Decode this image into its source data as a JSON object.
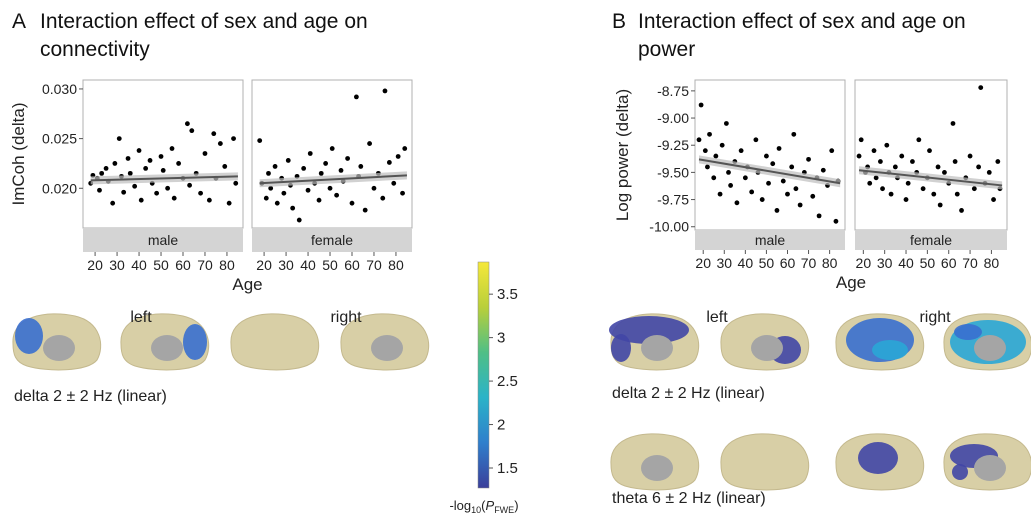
{
  "chart_data": [
    {
      "type": "scatter",
      "panel": "A",
      "title": "Interaction effect of sex and age on connectivity",
      "y_label": "ImCoh (delta)",
      "x_label": "Age",
      "xlim": [
        14.5,
        87.3
      ],
      "xticks": [
        20,
        30,
        40,
        50,
        60,
        70,
        80
      ],
      "ylim": [
        0.016,
        0.0309
      ],
      "yticks": [
        {
          "value": 0.02,
          "label": "0.020"
        },
        {
          "value": 0.025,
          "label": "0.025"
        },
        {
          "value": 0.03,
          "label": "0.030"
        }
      ],
      "point_color": "#000000",
      "trend_color": "#555555",
      "facets": [
        {
          "name": "male",
          "x": [
            18,
            19,
            21,
            22,
            23,
            25,
            26,
            28,
            29,
            31,
            32,
            33,
            35,
            36,
            38,
            40,
            41,
            43,
            45,
            46,
            48,
            50,
            51,
            53,
            55,
            56,
            58,
            60,
            62,
            63,
            64,
            66,
            68,
            70,
            72,
            74,
            75,
            77,
            79,
            81,
            83,
            84
          ],
          "y": [
            0.0205,
            0.0213,
            0.021,
            0.0198,
            0.0215,
            0.022,
            0.0207,
            0.0185,
            0.0225,
            0.025,
            0.0212,
            0.0196,
            0.023,
            0.0215,
            0.0202,
            0.0238,
            0.0188,
            0.022,
            0.0228,
            0.0205,
            0.0195,
            0.0232,
            0.0218,
            0.02,
            0.024,
            0.019,
            0.0225,
            0.021,
            0.0265,
            0.0203,
            0.0258,
            0.0215,
            0.0195,
            0.0235,
            0.0188,
            0.0255,
            0.021,
            0.0245,
            0.0222,
            0.0185,
            0.025,
            0.0205
          ],
          "trend_x": [
            18,
            85
          ],
          "trend_y": [
            0.0208,
            0.0212
          ]
        },
        {
          "name": "female",
          "x": [
            18,
            19,
            21,
            22,
            23,
            25,
            26,
            28,
            29,
            31,
            32,
            33,
            35,
            36,
            38,
            40,
            41,
            43,
            45,
            46,
            48,
            50,
            51,
            53,
            55,
            56,
            58,
            60,
            62,
            63,
            64,
            66,
            68,
            70,
            72,
            74,
            75,
            77,
            79,
            81,
            83,
            84
          ],
          "y": [
            0.0248,
            0.0205,
            0.019,
            0.0215,
            0.02,
            0.0222,
            0.0185,
            0.021,
            0.0195,
            0.0228,
            0.0203,
            0.018,
            0.0212,
            0.0168,
            0.022,
            0.0198,
            0.0235,
            0.0205,
            0.0188,
            0.0215,
            0.0225,
            0.02,
            0.024,
            0.0193,
            0.0218,
            0.0207,
            0.023,
            0.0185,
            0.0292,
            0.0212,
            0.0222,
            0.0178,
            0.0245,
            0.02,
            0.0215,
            0.019,
            0.0298,
            0.0226,
            0.0205,
            0.0232,
            0.0195,
            0.024
          ],
          "trend_x": [
            18,
            85
          ],
          "trend_y": [
            0.0205,
            0.0213
          ]
        }
      ]
    },
    {
      "type": "scatter",
      "panel": "B",
      "title": "Interaction effect of sex and age on power",
      "y_label": "Log power (delta)",
      "x_label": "Age",
      "xlim": [
        16.1,
        87.3
      ],
      "xticks": [
        20,
        30,
        40,
        50,
        60,
        70,
        80
      ],
      "ylim": [
        -10.03,
        -8.65
      ],
      "yticks": [
        {
          "value": -10,
          "label": "-10.00"
        },
        {
          "value": -9.75,
          "label": "-9.75"
        },
        {
          "value": -9.5,
          "label": "-9.50"
        },
        {
          "value": -9.25,
          "label": "-9.25"
        },
        {
          "value": -9,
          "label": "-9.00"
        },
        {
          "value": -8.75,
          "label": "-8.75"
        }
      ],
      "point_color": "#000000",
      "trend_color": "#555555",
      "facets": [
        {
          "name": "male",
          "x": [
            18,
            19,
            21,
            22,
            23,
            25,
            26,
            28,
            29,
            31,
            32,
            33,
            35,
            36,
            38,
            40,
            41,
            43,
            45,
            46,
            48,
            50,
            51,
            53,
            55,
            56,
            58,
            60,
            62,
            63,
            64,
            66,
            68,
            70,
            72,
            74,
            75,
            77,
            79,
            81,
            83,
            84
          ],
          "y": [
            -9.2,
            -8.88,
            -9.3,
            -9.45,
            -9.15,
            -9.55,
            -9.35,
            -9.7,
            -9.25,
            -9.05,
            -9.5,
            -9.62,
            -9.4,
            -9.78,
            -9.3,
            -9.55,
            -9.45,
            -9.68,
            -9.2,
            -9.5,
            -9.75,
            -9.35,
            -9.6,
            -9.42,
            -9.85,
            -9.28,
            -9.58,
            -9.7,
            -9.45,
            -9.15,
            -9.65,
            -9.8,
            -9.5,
            -9.38,
            -9.72,
            -9.55,
            -9.9,
            -9.48,
            -9.62,
            -9.3,
            -9.95,
            -9.58
          ],
          "trend_x": [
            18,
            85
          ],
          "trend_y": [
            -9.38,
            -9.6
          ]
        },
        {
          "name": "female",
          "x": [
            18,
            19,
            21,
            22,
            23,
            25,
            26,
            28,
            29,
            31,
            32,
            33,
            35,
            36,
            38,
            40,
            41,
            43,
            45,
            46,
            48,
            50,
            51,
            53,
            55,
            56,
            58,
            60,
            62,
            63,
            64,
            66,
            68,
            70,
            72,
            74,
            75,
            77,
            79,
            81,
            83,
            84
          ],
          "y": [
            -9.35,
            -9.2,
            -9.5,
            -9.45,
            -9.6,
            -9.3,
            -9.55,
            -9.4,
            -9.65,
            -9.25,
            -9.5,
            -9.7,
            -9.45,
            -9.55,
            -9.35,
            -9.75,
            -9.6,
            -9.4,
            -9.5,
            -9.2,
            -9.65,
            -9.55,
            -9.3,
            -9.7,
            -9.45,
            -9.8,
            -9.5,
            -9.6,
            -9.05,
            -9.4,
            -9.7,
            -9.85,
            -9.55,
            -9.35,
            -9.65,
            -9.45,
            -8.72,
            -9.6,
            -9.5,
            -9.75,
            -9.4,
            -9.65
          ],
          "trend_x": [
            18,
            85
          ],
          "trend_y": [
            -9.48,
            -9.62
          ]
        }
      ]
    }
  ],
  "colorbar": {
    "lim": [
      1.27,
      3.87
    ],
    "ticks": [
      1.5,
      2,
      2.5,
      3,
      3.5
    ],
    "colors": [
      "#3b3f9a",
      "#2f7fcc",
      "#2bb3c8",
      "#4fbf86",
      "#b9cf3a",
      "#f5e83a"
    ],
    "label_parts": [
      "-log",
      "10",
      "(",
      "P",
      "FWE",
      ")"
    ]
  },
  "brain_maps": {
    "A": {
      "hemispheres": [
        "left",
        "right"
      ],
      "rows": [
        "delta 2 ± 2 Hz (linear)"
      ]
    },
    "B": {
      "hemispheres": [
        "left",
        "right"
      ],
      "rows": [
        "delta 2 ± 2 Hz (linear)",
        "theta 6 ± 2 Hz (linear)"
      ]
    }
  }
}
